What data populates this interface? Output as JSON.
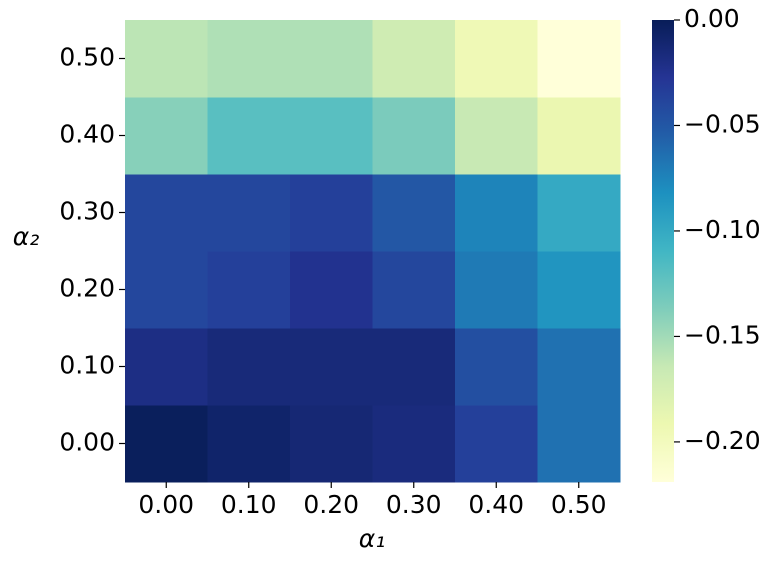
{
  "chart_data": {
    "type": "heatmap",
    "xlabel": "α₁",
    "ylabel": "α₂",
    "x_categories": [
      "0.00",
      "0.10",
      "0.20",
      "0.30",
      "0.40",
      "0.50"
    ],
    "y_categories": [
      "0.00",
      "0.10",
      "0.20",
      "0.30",
      "0.40",
      "0.50"
    ],
    "values": [
      [
        -0.002,
        -0.008,
        -0.013,
        -0.017,
        -0.035,
        -0.065
      ],
      [
        -0.02,
        -0.015,
        -0.015,
        -0.015,
        -0.045,
        -0.065
      ],
      [
        -0.04,
        -0.035,
        -0.025,
        -0.04,
        -0.07,
        -0.085
      ],
      [
        -0.04,
        -0.04,
        -0.035,
        -0.05,
        -0.075,
        -0.1
      ],
      [
        -0.14,
        -0.12,
        -0.12,
        -0.135,
        -0.165,
        -0.19
      ],
      [
        -0.16,
        -0.155,
        -0.155,
        -0.17,
        -0.195,
        -0.219
      ]
    ],
    "clim": [
      -0.219,
      0
    ],
    "cticks": [
      {
        "value": 0,
        "label": "0.00"
      },
      {
        "value": -0.05,
        "label": "−0.05"
      },
      {
        "value": -0.1,
        "label": "−0.10"
      },
      {
        "value": -0.15,
        "label": "−0.15"
      },
      {
        "value": -0.2,
        "label": "−0.20"
      }
    ],
    "colorscale": [
      "#ffffd9",
      "#edf8b1",
      "#c7e9b4",
      "#7fcdbb",
      "#41b6c4",
      "#1d91c0",
      "#225ea8",
      "#253494",
      "#081d58"
    ]
  }
}
